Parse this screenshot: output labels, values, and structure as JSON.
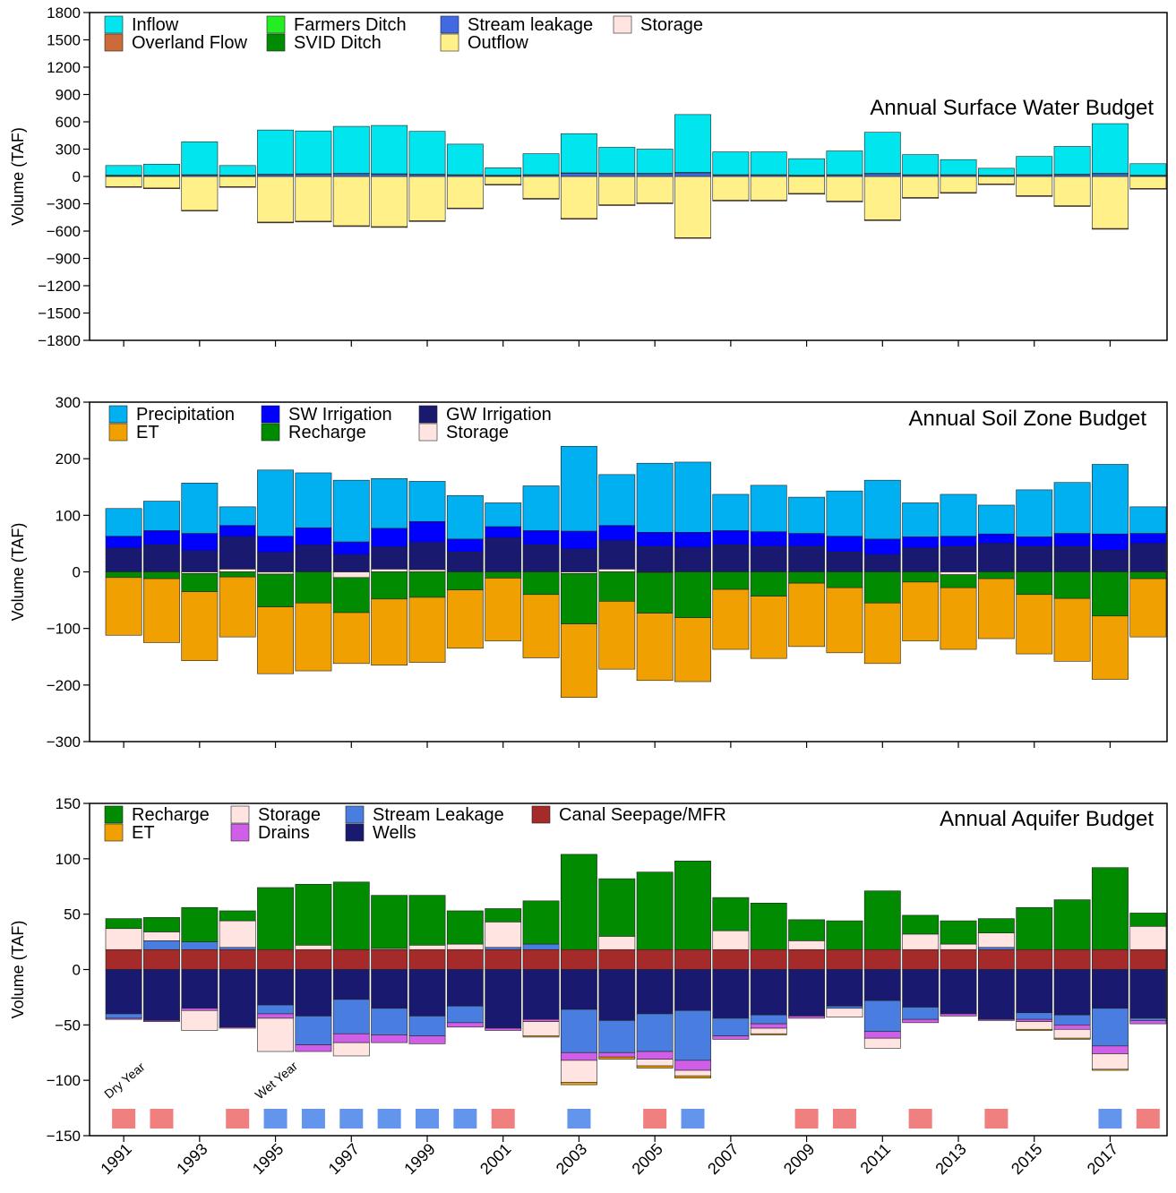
{
  "chart_data": [
    {
      "type": "bar",
      "stacked": true,
      "title": "Annual Surface Water Budget",
      "ylabel": "Volume (TAF)",
      "legend": "top-left",
      "show_xtick_labels": false,
      "x": [
        1991,
        1992,
        1993,
        1994,
        1995,
        1996,
        1997,
        1998,
        1999,
        2000,
        2001,
        2002,
        2003,
        2004,
        2005,
        2006,
        2007,
        2008,
        2009,
        2010,
        2011,
        2012,
        2013,
        2014,
        2015,
        2016,
        2017,
        2018
      ],
      "xlim": [
        1990.1,
        2018.5
      ],
      "xticks": [
        1991,
        1993,
        1995,
        1997,
        1999,
        2001,
        2003,
        2005,
        2007,
        2009,
        2011,
        2013,
        2015,
        2017
      ],
      "ylim": [
        -1800,
        1800
      ],
      "yticks": [
        {
          "value": -1800,
          "label": "−1800"
        },
        {
          "value": -1500,
          "label": "−1500"
        },
        {
          "value": -1200,
          "label": "−1200"
        },
        {
          "value": -900,
          "label": "−900"
        },
        {
          "value": -600,
          "label": "−600"
        },
        {
          "value": -300,
          "label": "−300"
        },
        0,
        300,
        600,
        900,
        1200,
        1500,
        1800
      ],
      "series": [
        {
          "name": "Inflow",
          "color": "#00e5ee",
          "values": [
            106,
            121,
            361,
            106,
            486,
            471,
            516,
            531,
            471,
            336,
            81,
            231,
            431,
            286,
            266,
            636,
            251,
            251,
            181,
            261,
            451,
            221,
            166,
            76,
            201,
            306,
            546,
            126
          ]
        },
        {
          "name": "Overland Flow",
          "color": "#cd6a3a",
          "values": [
            -8,
            -8,
            -8,
            -8,
            -8,
            -8,
            -8,
            -8,
            -8,
            -8,
            -8,
            -8,
            -8,
            -8,
            -8,
            -8,
            -8,
            -8,
            -8,
            -8,
            -8,
            -8,
            -8,
            -8,
            -8,
            -8,
            -8,
            -8
          ]
        },
        {
          "name": "Farmers Ditch",
          "color": "#22ee22",
          "values": [
            1,
            1,
            1,
            1,
            1,
            1,
            1,
            1,
            1,
            1,
            1,
            1,
            1,
            1,
            1,
            1,
            1,
            1,
            1,
            1,
            1,
            1,
            1,
            1,
            1,
            1,
            1,
            1
          ]
        },
        {
          "name": "SVID Ditch",
          "color": "#008b00",
          "values": [
            3,
            3,
            3,
            3,
            3,
            3,
            3,
            3,
            3,
            3,
            3,
            3,
            3,
            3,
            3,
            3,
            3,
            3,
            3,
            3,
            3,
            3,
            3,
            3,
            3,
            3,
            3,
            3
          ]
        },
        {
          "name": "Stream leakage",
          "color": "#4169e1",
          "values": [
            10,
            10,
            15,
            10,
            20,
            25,
            30,
            25,
            20,
            15,
            10,
            15,
            35,
            30,
            30,
            40,
            15,
            15,
            10,
            15,
            30,
            15,
            15,
            10,
            15,
            20,
            30,
            10
          ]
        },
        {
          "name": "Outflow",
          "color": "#fff08a",
          "values": [
            -112,
            -127,
            -372,
            -112,
            -502,
            -492,
            -542,
            -552,
            -487,
            -347,
            -87,
            -242,
            -462,
            -312,
            -292,
            -672,
            -262,
            -262,
            -187,
            -272,
            -477,
            -232,
            -177,
            -82,
            -212,
            -322,
            -572,
            -132
          ]
        },
        {
          "name": "Storage",
          "color": "#ffe4e1",
          "values": [
            0,
            0,
            0,
            0,
            0,
            0,
            0,
            0,
            0,
            0,
            0,
            0,
            0,
            0,
            0,
            0,
            0,
            0,
            0,
            0,
            0,
            0,
            0,
            0,
            0,
            0,
            0,
            0
          ]
        }
      ]
    },
    {
      "type": "bar",
      "stacked": true,
      "title": "Annual Soil Zone Budget",
      "ylabel": "Volume (TAF)",
      "legend": "top-left",
      "show_xtick_labels": false,
      "x": [
        1991,
        1992,
        1993,
        1994,
        1995,
        1996,
        1997,
        1998,
        1999,
        2000,
        2001,
        2002,
        2003,
        2004,
        2005,
        2006,
        2007,
        2008,
        2009,
        2010,
        2011,
        2012,
        2013,
        2014,
        2015,
        2016,
        2017,
        2018
      ],
      "xlim": [
        1990.1,
        2018.5
      ],
      "xticks": [
        1991,
        1993,
        1995,
        1997,
        1999,
        2001,
        2003,
        2005,
        2007,
        2009,
        2011,
        2013,
        2015,
        2017
      ],
      "ylim": [
        -300,
        300
      ],
      "yticks": [
        {
          "value": -300,
          "label": "−300"
        },
        {
          "value": -200,
          "label": "−200"
        },
        {
          "value": -100,
          "label": "−100"
        },
        0,
        100,
        200,
        300
      ],
      "series": [
        {
          "name": "Precipitation",
          "color": "#00b0f0",
          "values": [
            49,
            52,
            89,
            33,
            117,
            97,
            109,
            88,
            71,
            77,
            42,
            79,
            150,
            90,
            122,
            124,
            64,
            82,
            64,
            80,
            104,
            60,
            74,
            51,
            83,
            90,
            123,
            47
          ]
        },
        {
          "name": "ET",
          "color": "#f0a000",
          "values": [
            -102,
            -113,
            -122,
            -106,
            -118,
            -120,
            -90,
            -117,
            -115,
            -103,
            -111,
            -112,
            -130,
            -120,
            -119,
            -113,
            -106,
            -110,
            -112,
            -115,
            -107,
            -104,
            -109,
            -106,
            -105,
            -111,
            -112,
            -103
          ]
        },
        {
          "name": "SW Irrigation",
          "color": "#0000ff",
          "values": [
            21,
            25,
            31,
            20,
            29,
            31,
            23,
            33,
            37,
            23,
            20,
            25,
            32,
            27,
            25,
            27,
            25,
            26,
            23,
            28,
            28,
            20,
            18,
            17,
            17,
            23,
            29,
            18
          ]
        },
        {
          "name": "Recharge",
          "color": "#008b00",
          "values": [
            -10,
            -12,
            -32,
            -9,
            -58,
            -55,
            -62,
            -48,
            -45,
            -32,
            -11,
            -40,
            -89,
            -52,
            -72,
            -81,
            -31,
            -43,
            -20,
            -28,
            -55,
            -18,
            -23,
            -12,
            -40,
            -47,
            -78,
            -12
          ]
        },
        {
          "name": "GW Irrigation",
          "color": "#191970",
          "values": [
            42,
            48,
            37,
            57,
            34,
            47,
            30,
            39,
            48,
            35,
            60,
            48,
            40,
            50,
            45,
            43,
            48,
            45,
            45,
            35,
            30,
            42,
            45,
            50,
            45,
            45,
            38,
            50
          ]
        },
        {
          "name": "Storage",
          "color": "#ffe4e1",
          "values": [
            0,
            0,
            -3,
            5,
            -4,
            0,
            -10,
            5,
            4,
            0,
            0,
            0,
            -3,
            5,
            -1,
            0,
            0,
            0,
            0,
            0,
            0,
            0,
            -5,
            0,
            0,
            0,
            0,
            0
          ]
        }
      ]
    },
    {
      "type": "bar",
      "stacked": true,
      "title": "Annual Aquifer Budget",
      "ylabel": "Volume (TAF)",
      "legend": "top-left",
      "show_xtick_labels": true,
      "x": [
        1991,
        1992,
        1993,
        1994,
        1995,
        1996,
        1997,
        1998,
        1999,
        2000,
        2001,
        2002,
        2003,
        2004,
        2005,
        2006,
        2007,
        2008,
        2009,
        2010,
        2011,
        2012,
        2013,
        2014,
        2015,
        2016,
        2017,
        2018
      ],
      "xlim": [
        1990.1,
        2018.5
      ],
      "xticks": [
        1991,
        1993,
        1995,
        1997,
        1999,
        2001,
        2003,
        2005,
        2007,
        2009,
        2011,
        2013,
        2015,
        2017
      ],
      "ylim": [
        -150,
        150
      ],
      "yticks": [
        {
          "value": -150,
          "label": "−150"
        },
        {
          "value": -100,
          "label": "−100"
        },
        {
          "value": -50,
          "label": "−50"
        },
        0,
        50,
        100,
        150
      ],
      "series": [
        {
          "name": "Recharge",
          "color": "#008b00",
          "values": [
            9,
            13,
            31,
            9,
            56,
            55,
            61,
            48,
            45,
            30,
            12,
            39,
            86,
            52,
            70,
            80,
            30,
            42,
            19,
            26,
            53,
            17,
            21,
            13,
            38,
            45,
            74,
            12
          ]
        },
        {
          "name": "ET",
          "color": "#f0a000",
          "values": [
            0,
            0,
            0,
            0,
            0,
            0,
            0,
            0,
            0,
            0,
            0,
            -1,
            -2,
            -2,
            -2,
            -2,
            0,
            -1,
            0,
            0,
            0,
            0,
            0,
            0,
            -1,
            -1,
            -1,
            0
          ]
        },
        {
          "name": "Storage",
          "color": "#ffe4e1",
          "values": [
            19,
            8,
            -18,
            24,
            -30,
            4,
            -12,
            1,
            4,
            5,
            23,
            -13,
            -20,
            12,
            -6,
            -5,
            17,
            -5,
            8,
            -8,
            -9,
            14,
            5,
            13,
            -7,
            -8,
            -14,
            21
          ]
        },
        {
          "name": "Drains",
          "color": "#d05fe8",
          "values": [
            -1,
            -1,
            -2,
            -1,
            -4,
            -6,
            -8,
            -7,
            -7,
            -4,
            -2,
            -2,
            -7,
            -4,
            -7,
            -9,
            -3,
            -4,
            -2,
            0,
            -6,
            -3,
            -2,
            -1,
            -2,
            -4,
            -7,
            -3
          ]
        },
        {
          "name": "Stream Leakage",
          "color": "#4a7de0",
          "values": [
            -4,
            8,
            7,
            2,
            -8,
            -26,
            -31,
            -24,
            -18,
            -15,
            2,
            5,
            -39,
            -29,
            -34,
            -45,
            -16,
            -8,
            0,
            -2,
            -28,
            -11,
            0,
            2,
            -6,
            -9,
            -34,
            -2
          ]
        },
        {
          "name": "Wells",
          "color": "#191970",
          "values": [
            -40,
            -46,
            -35,
            -52,
            -32,
            -42,
            -27,
            -35,
            -42,
            -33,
            -53,
            -45,
            -36,
            -46,
            -40,
            -37,
            -44,
            -41,
            -42,
            -33,
            -28,
            -34,
            -40,
            -45,
            -39,
            -41,
            -35,
            -44
          ]
        },
        {
          "name": "Canal Seepage/MFR",
          "color": "#a52a2a",
          "values": [
            18,
            18,
            18,
            18,
            18,
            18,
            18,
            18,
            18,
            18,
            18,
            18,
            18,
            18,
            18,
            18,
            18,
            18,
            18,
            18,
            18,
            18,
            18,
            18,
            18,
            18,
            18,
            18
          ]
        }
      ],
      "year_markers": [
        {
          "label": "Dry Year",
          "color": "#f08080",
          "years": [
            1991,
            1992,
            1994,
            2001,
            2005,
            2009,
            2010,
            2012,
            2014,
            2018
          ]
        },
        {
          "label": "Wet Year",
          "color": "#6495ed",
          "years": [
            1995,
            1996,
            1997,
            1998,
            1999,
            2000,
            2003,
            2006,
            2017
          ]
        }
      ]
    }
  ]
}
